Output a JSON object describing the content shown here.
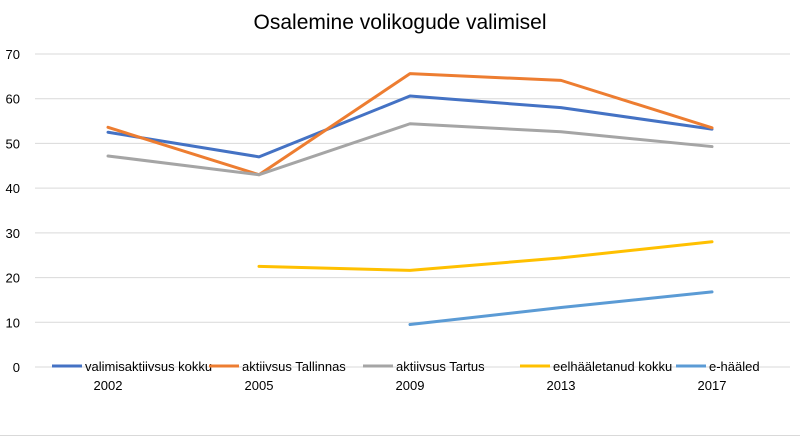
{
  "chart_data": {
    "type": "line",
    "title": "Osalemine volikogude valimisel",
    "xlabel": "",
    "ylabel": "",
    "categories": [
      "2002",
      "2005",
      "2009",
      "2013",
      "2017"
    ],
    "ylim": [
      0,
      70
    ],
    "yticks": [
      "0",
      "10",
      "20",
      "30",
      "40",
      "50",
      "60",
      "70"
    ],
    "grid": true,
    "legend_position": "bottom",
    "series": [
      {
        "name": "valimisaktiivsus kokku",
        "color": "#4472c4",
        "values": [
          52.5,
          47.0,
          60.6,
          58.0,
          53.2
        ]
      },
      {
        "name": "aktiivsus Tallinnas",
        "color": "#ed7d31",
        "values": [
          53.6,
          43.0,
          65.6,
          64.1,
          53.5
        ]
      },
      {
        "name": "aktiivsus Tartus",
        "color": "#a5a5a5",
        "values": [
          47.2,
          43.0,
          54.4,
          52.6,
          49.3
        ]
      },
      {
        "name": "eelhääletanud kokku",
        "color": "#ffc000",
        "values": [
          null,
          22.5,
          21.6,
          24.4,
          28.0
        ]
      },
      {
        "name": "e-hääled",
        "color": "#5b9bd5",
        "values": [
          null,
          null,
          9.5,
          13.3,
          16.8
        ]
      }
    ]
  }
}
